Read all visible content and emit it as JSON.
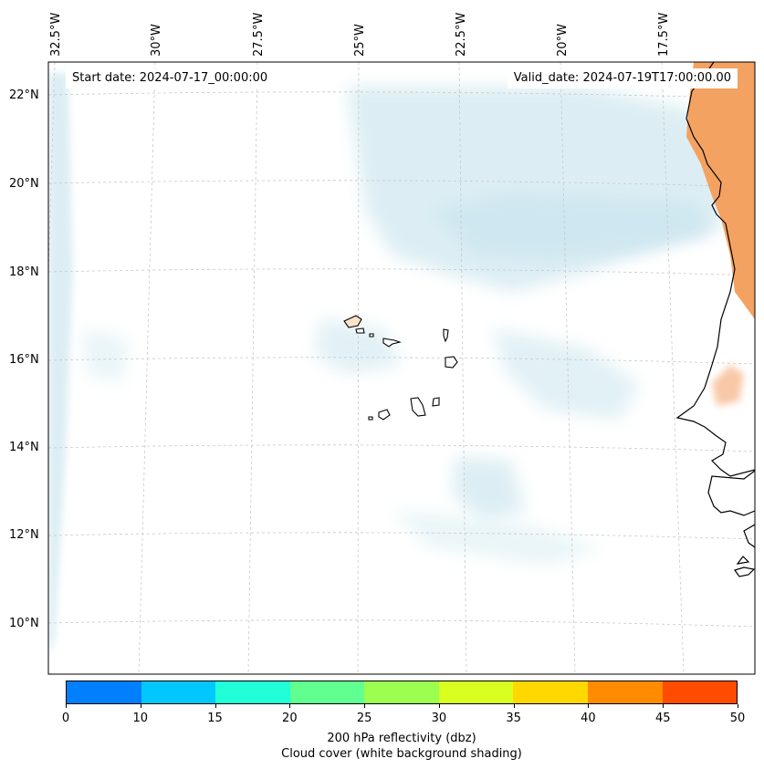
{
  "map": {
    "title_left": "Start date: 2024-07-17_00:00:00",
    "title_right": "Valid_date: 2024-07-19T17:00:00.00",
    "longitude_labels": [
      "32.5°W",
      "30°W",
      "27.5°W",
      "25°W",
      "22.5°W",
      "20°W",
      "17.5°W"
    ],
    "latitude_labels": [
      "22°N",
      "20°N",
      "18°N",
      "16°N",
      "14°N",
      "12°N",
      "10°N"
    ],
    "colors": {
      "cloud": "#b9dde8",
      "land_shade": "#f4a261",
      "coastline": "#000000",
      "gridline": "#c8c8c8"
    }
  },
  "colorbar": {
    "ticks": [
      "0",
      "10",
      "15",
      "20",
      "25",
      "30",
      "35",
      "40",
      "45",
      "50"
    ],
    "colors": [
      "#0080ff",
      "#00c8ff",
      "#20ffd8",
      "#60ff90",
      "#9cff50",
      "#d8ff20",
      "#ffd800",
      "#ff8c00",
      "#ff4c00"
    ],
    "label_line1": "200 hPa reflectivity (dbz)",
    "label_line2": "Cloud cover (white background shading)"
  }
}
